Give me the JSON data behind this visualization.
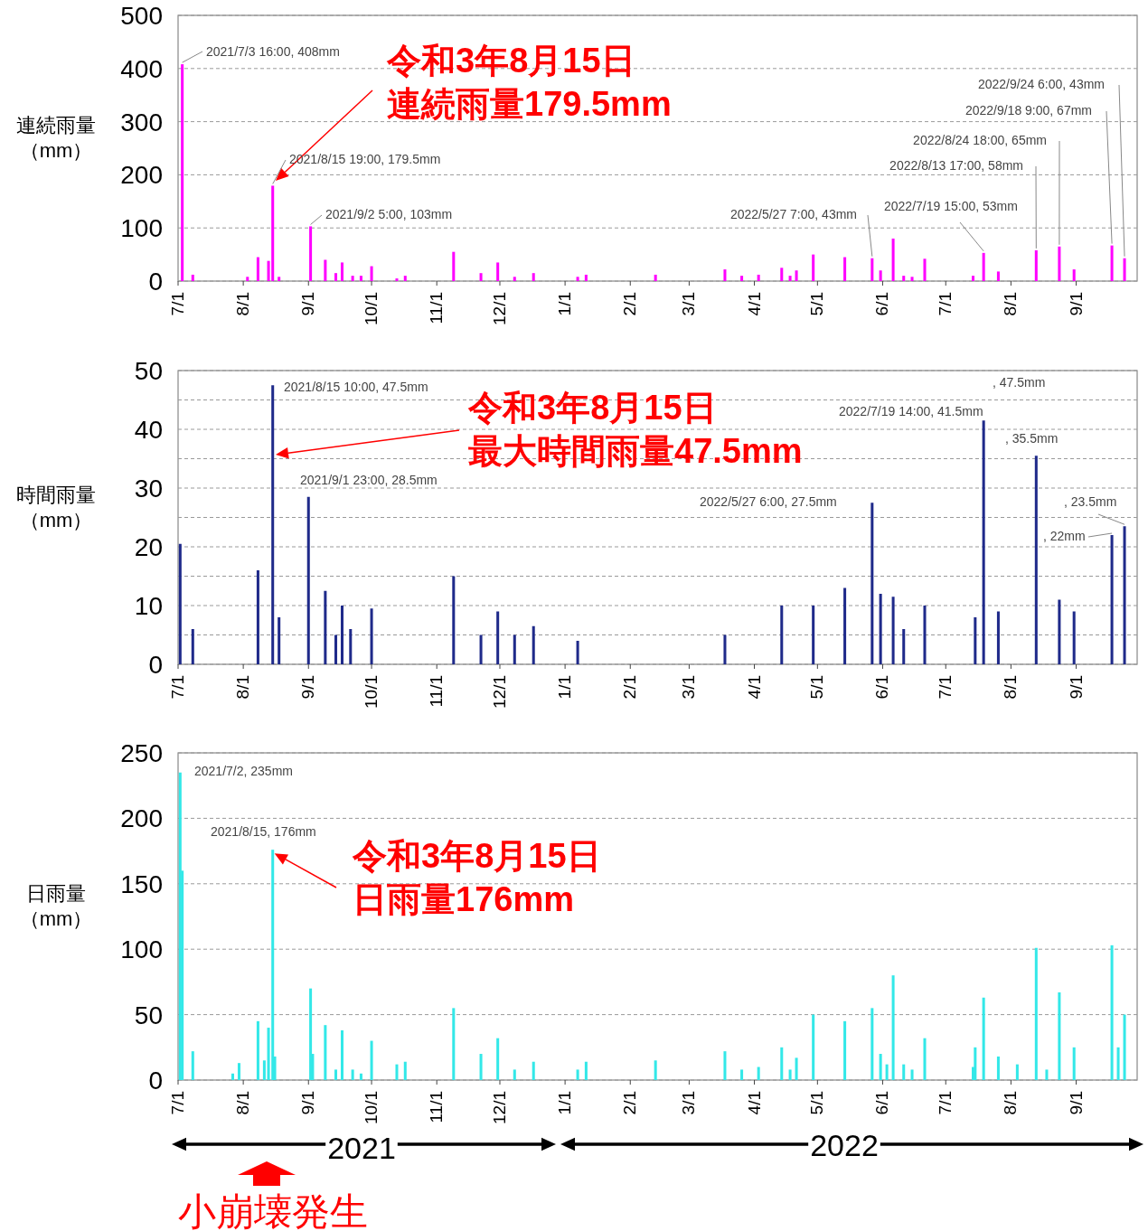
{
  "chart_data": [
    {
      "type": "bar",
      "ylabel": "連続雨量（mm）",
      "color": "#ff00ff",
      "grid": "y",
      "xlim": [
        "2021-07-01",
        "2022-09-30"
      ],
      "ylim": [
        0,
        500
      ],
      "yticks": [
        0,
        100,
        200,
        300,
        400,
        500
      ],
      "xticks": [
        {
          "value": "2021-07-01",
          "label": "7/1"
        },
        {
          "value": "2021-08-01",
          "label": "8/1"
        },
        {
          "value": "2021-09-01",
          "label": "9/1"
        },
        {
          "value": "2021-10-01",
          "label": "10/1"
        },
        {
          "value": "2021-11-01",
          "label": "11/1"
        },
        {
          "value": "2021-12-01",
          "label": "12/1"
        },
        {
          "value": "2022-01-01",
          "label": "1/1"
        },
        {
          "value": "2022-02-01",
          "label": "2/1"
        },
        {
          "value": "2022-03-01",
          "label": "3/1"
        },
        {
          "value": "2022-04-01",
          "label": "4/1"
        },
        {
          "value": "2022-05-01",
          "label": "5/1"
        },
        {
          "value": "2022-06-01",
          "label": "6/1"
        },
        {
          "value": "2022-07-01",
          "label": "7/1"
        },
        {
          "value": "2022-08-01",
          "label": "8/1"
        },
        {
          "value": "2022-09-01",
          "label": "9/1"
        }
      ],
      "x": [
        "2021-07-03",
        "2021-07-08",
        "2021-08-03",
        "2021-08-08",
        "2021-08-13",
        "2021-08-15",
        "2021-08-18",
        "2021-09-02",
        "2021-09-09",
        "2021-09-14",
        "2021-09-17",
        "2021-09-22",
        "2021-09-26",
        "2021-10-01",
        "2021-10-13",
        "2021-10-17",
        "2021-11-09",
        "2021-11-22",
        "2021-11-30",
        "2021-12-08",
        "2021-12-17",
        "2022-01-07",
        "2022-01-11",
        "2022-02-13",
        "2022-03-18",
        "2022-03-26",
        "2022-04-03",
        "2022-04-14",
        "2022-04-18",
        "2022-04-21",
        "2022-04-29",
        "2022-05-14",
        "2022-05-27",
        "2022-05-31",
        "2022-06-06",
        "2022-06-11",
        "2022-06-15",
        "2022-06-21",
        "2022-07-14",
        "2022-07-19",
        "2022-07-26",
        "2022-08-13",
        "2022-08-24",
        "2022-08-31",
        "2022-09-18",
        "2022-09-24"
      ],
      "values": [
        408,
        12,
        8,
        45,
        38,
        179.5,
        8,
        103,
        40,
        15,
        35,
        10,
        10,
        28,
        5,
        10,
        55,
        15,
        35,
        8,
        15,
        8,
        12,
        12,
        22,
        10,
        12,
        25,
        10,
        20,
        50,
        45,
        43,
        20,
        80,
        10,
        8,
        42,
        10,
        53,
        18,
        58,
        65,
        22,
        67,
        43
      ],
      "annotations": [
        {
          "text": "2021/7/3 16:00, 408mm",
          "x": "2021-07-03",
          "y": 408
        },
        "令和3年8月15日連続雨量179.5mm",
        {
          "text": "2021/8/15 19:00, 179.5mm",
          "x": "2021-08-15",
          "y": 179.5
        },
        {
          "text": "2021/9/2 5:00, 103mm",
          "x": "2021-09-02",
          "y": 103
        },
        {
          "text": "2022/5/27 7:00, 43mm",
          "x": "2022-05-27",
          "y": 43
        },
        {
          "text": "2022/7/19 15:00, 53mm",
          "x": "2022-07-19",
          "y": 53
        },
        {
          "text": "2022/8/13 17:00, 58mm",
          "x": "2022-08-13",
          "y": 58
        },
        {
          "text": "2022/8/24 18:00, 65mm",
          "x": "2022-08-24",
          "y": 65
        },
        {
          "text": "2022/9/18 9:00, 67mm",
          "x": "2022-09-18",
          "y": 67
        },
        {
          "text": "2022/9/24 6:00, 43mm",
          "x": "2022-09-24",
          "y": 43
        }
      ]
    },
    {
      "type": "bar",
      "ylabel": "時間雨量（mm）",
      "color": "#1f2a8a",
      "grid": "y",
      "xlim": [
        "2021-07-01",
        "2022-09-30"
      ],
      "ylim": [
        0,
        50
      ],
      "yticks": [
        0,
        {
          "value": 5,
          "label": null
        },
        10,
        {
          "value": 15,
          "label": null
        },
        20,
        {
          "value": 25,
          "label": null
        },
        30,
        {
          "value": 35,
          "label": null
        },
        40,
        {
          "value": 45,
          "label": null
        },
        50
      ],
      "xticks": [
        {
          "value": "2021-07-01",
          "label": "7/1"
        },
        {
          "value": "2021-08-01",
          "label": "8/1"
        },
        {
          "value": "2021-09-01",
          "label": "9/1"
        },
        {
          "value": "2021-10-01",
          "label": "10/1"
        },
        {
          "value": "2021-11-01",
          "label": "11/1"
        },
        {
          "value": "2021-12-01",
          "label": "12/1"
        },
        {
          "value": "2022-01-01",
          "label": "1/1"
        },
        {
          "value": "2022-02-01",
          "label": "2/1"
        },
        {
          "value": "2022-03-01",
          "label": "3/1"
        },
        {
          "value": "2022-04-01",
          "label": "4/1"
        },
        {
          "value": "2022-05-01",
          "label": "5/1"
        },
        {
          "value": "2022-06-01",
          "label": "6/1"
        },
        {
          "value": "2022-07-01",
          "label": "7/1"
        },
        {
          "value": "2022-08-01",
          "label": "8/1"
        },
        {
          "value": "2022-09-01",
          "label": "9/1"
        }
      ],
      "x": [
        "2021-07-02",
        "2021-07-08",
        "2021-08-08",
        "2021-08-15",
        "2021-08-18",
        "2021-09-01",
        "2021-09-09",
        "2021-09-14",
        "2021-09-17",
        "2021-09-21",
        "2021-10-01",
        "2021-11-09",
        "2021-11-22",
        "2021-11-30",
        "2021-12-08",
        "2021-12-17",
        "2022-01-07",
        "2022-03-18",
        "2022-04-14",
        "2022-04-29",
        "2022-05-14",
        "2022-05-27",
        "2022-05-31",
        "2022-06-06",
        "2022-06-11",
        "2022-06-21",
        "2022-07-15",
        "2022-07-19",
        "2022-07-26",
        "2022-08-13",
        "2022-08-24",
        "2022-08-31",
        "2022-09-18",
        "2022-09-24"
      ],
      "values": [
        20.5,
        6,
        16,
        47.5,
        8,
        28.5,
        12.5,
        5,
        10,
        6,
        9.5,
        15,
        5,
        9,
        5,
        6.5,
        4,
        5,
        10,
        10,
        13,
        27.5,
        12,
        11.5,
        6,
        10,
        8,
        41.5,
        9,
        35.5,
        11,
        9,
        22,
        23.5
      ],
      "annotations": [
        {
          "text": "2021/8/15 10:00, 47.5mm",
          "x": "2021-08-15",
          "y": 47.5
        },
        "令和3年8月15日最大時間雨量47.5mm",
        {
          "text": "2021/9/1 23:00, 28.5mm",
          "x": "2021-09-01",
          "y": 28.5
        },
        {
          "text": "2022/5/27 6:00, 27.5mm",
          "x": "2022-05-27",
          "y": 27.5
        },
        ", 47.5mm",
        {
          "text": "2022/7/19 14:00, 41.5mm",
          "x": "2022-07-19",
          "y": 41.5
        },
        {
          "text": ", 35.5mm",
          "x": "2022-08-13",
          "y": 35.5
        },
        {
          "text": ", 23.5mm",
          "x": "2022-09-24",
          "y": 23.5
        },
        {
          "text": ", 22mm",
          "x": "2022-09-18",
          "y": 22
        }
      ]
    },
    {
      "type": "bar",
      "ylabel": "日雨量（mm）",
      "color": "#33e8e8",
      "grid": "y",
      "xlim": [
        "2021-07-01",
        "2022-09-30"
      ],
      "ylim": [
        0,
        250
      ],
      "yticks": [
        0,
        50,
        100,
        150,
        200,
        250
      ],
      "xticks": [
        {
          "value": "2021-07-01",
          "label": "7/1"
        },
        {
          "value": "2021-08-01",
          "label": "8/1"
        },
        {
          "value": "2021-09-01",
          "label": "9/1"
        },
        {
          "value": "2021-10-01",
          "label": "10/1"
        },
        {
          "value": "2021-11-01",
          "label": "11/1"
        },
        {
          "value": "2021-12-01",
          "label": "12/1"
        },
        {
          "value": "2022-01-01",
          "label": "1/1"
        },
        {
          "value": "2022-02-01",
          "label": "2/1"
        },
        {
          "value": "2022-03-01",
          "label": "3/1"
        },
        {
          "value": "2022-04-01",
          "label": "4/1"
        },
        {
          "value": "2022-05-01",
          "label": "5/1"
        },
        {
          "value": "2022-06-01",
          "label": "6/1"
        },
        {
          "value": "2022-07-01",
          "label": "7/1"
        },
        {
          "value": "2022-08-01",
          "label": "8/1"
        },
        {
          "value": "2022-09-01",
          "label": "9/1"
        }
      ],
      "x": [
        "2021-07-02",
        "2021-07-03",
        "2021-07-08",
        "2021-07-27",
        "2021-07-30",
        "2021-08-08",
        "2021-08-11",
        "2021-08-13",
        "2021-08-15",
        "2021-08-16",
        "2021-09-02",
        "2021-09-03",
        "2021-09-09",
        "2021-09-14",
        "2021-09-17",
        "2021-09-22",
        "2021-09-26",
        "2021-10-01",
        "2021-10-13",
        "2021-10-17",
        "2021-11-09",
        "2021-11-22",
        "2021-11-30",
        "2021-12-08",
        "2021-12-17",
        "2022-01-07",
        "2022-01-11",
        "2022-02-13",
        "2022-03-18",
        "2022-03-26",
        "2022-04-03",
        "2022-04-14",
        "2022-04-18",
        "2022-04-21",
        "2022-04-29",
        "2022-05-14",
        "2022-05-27",
        "2022-05-31",
        "2022-06-03",
        "2022-06-06",
        "2022-06-11",
        "2022-06-15",
        "2022-06-21",
        "2022-07-14",
        "2022-07-15",
        "2022-07-19",
        "2022-07-26",
        "2022-08-04",
        "2022-08-13",
        "2022-08-18",
        "2022-08-24",
        "2022-08-31",
        "2022-09-18",
        "2022-09-21",
        "2022-09-24"
      ],
      "values": [
        235,
        160,
        22,
        5,
        13,
        45,
        15,
        40,
        176,
        18,
        70,
        20,
        42,
        8,
        38,
        8,
        5,
        30,
        12,
        14,
        55,
        20,
        32,
        8,
        14,
        8,
        14,
        15,
        22,
        8,
        10,
        25,
        8,
        17,
        50,
        45,
        55,
        20,
        12,
        80,
        12,
        8,
        32,
        10,
        25,
        63,
        18,
        12,
        101,
        8,
        67,
        25,
        103,
        25,
        50
      ],
      "annotations": [
        {
          "text": "2021/7/2, 235mm",
          "x": "2021-07-02",
          "y": 235
        },
        {
          "text": "2021/8/15, 176mm",
          "x": "2021-08-15",
          "y": 176
        },
        {
          "text": "令和3年8月15日日雨量176mm",
          "x": "2021-08-15",
          "y": 176
        },
        "2021",
        "2022",
        "小崩壊発生"
      ]
    }
  ]
}
